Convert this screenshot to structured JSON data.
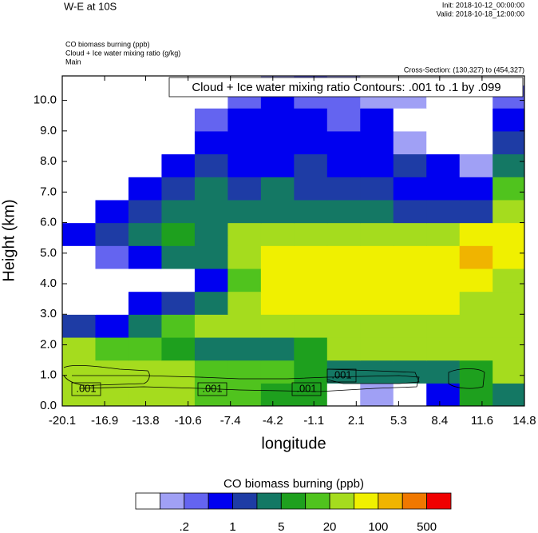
{
  "chart_data": {
    "type": "contour",
    "title": "W-E at 10S",
    "init": "Init: 2018-10-12_00:00:00",
    "valid": "Valid: 2018-10-18_12:00:00",
    "field_lines": [
      "CO biomass burning   (ppb)",
      "Cloud + Ice water mixing ratio   (g/kg)",
      "Main"
    ],
    "cross_section": "Cross-Section: (130,327) to (454,327)",
    "contour_info": "Cloud + Ice water mixing ratio Contours: .001 to .1 by .099",
    "contour_labels": [
      ".001",
      ".001",
      ".001",
      ".001"
    ],
    "xlabel": "longitude",
    "ylabel": "Height (km)",
    "xlim": [
      -20.1,
      14.8
    ],
    "xticks": [
      -20.1,
      -16.9,
      -13.8,
      -10.6,
      -7.4,
      -4.2,
      -1.1,
      2.1,
      5.3,
      8.4,
      11.6,
      14.8
    ],
    "ylim": [
      0,
      10.8
    ],
    "yticks": [
      {
        "value": 0,
        "label": "0.0"
      },
      {
        "value": 1,
        "label": "1.0"
      },
      {
        "value": 2,
        "label": "2.0"
      },
      {
        "value": 3,
        "label": "3.0"
      },
      {
        "value": 4,
        "label": "4.0"
      },
      {
        "value": 5,
        "label": "5.0"
      },
      {
        "value": 6,
        "label": "6.0"
      },
      {
        "value": 7,
        "label": "7.0"
      },
      {
        "value": 8,
        "label": "8.0"
      },
      {
        "value": 9,
        "label": "9.0"
      },
      {
        "value": 10,
        "label": "10.0"
      }
    ],
    "x": [
      -18.85,
      -16.35,
      -13.85,
      -11.35,
      -8.85,
      -6.35,
      -3.85,
      -1.35,
      1.15,
      3.65,
      6.15,
      8.65,
      11.15,
      13.65
    ],
    "y": [
      0.375,
      1.125,
      1.875,
      2.625,
      3.375,
      4.125,
      4.875,
      5.625,
      6.375,
      7.125,
      7.875,
      8.625,
      9.375,
      10.125,
      10.875
    ],
    "z": [
      [
        30,
        30,
        30,
        30,
        12,
        12,
        7,
        7,
        0.05,
        0.1,
        0.05,
        0.6,
        7,
        3
      ],
      [
        30,
        30,
        30,
        30,
        12,
        12,
        12,
        7,
        3,
        3,
        3,
        3,
        7,
        30
      ],
      [
        30,
        12,
        12,
        7,
        3,
        3,
        3,
        7,
        30,
        30,
        30,
        30,
        30,
        30
      ],
      [
        1.5,
        0.6,
        3,
        12,
        30,
        30,
        30,
        30,
        30,
        30,
        30,
        30,
        30,
        30
      ],
      [
        0.05,
        0.05,
        0.6,
        1.5,
        3,
        30,
        60,
        60,
        60,
        60,
        60,
        60,
        30,
        30
      ],
      [
        0.05,
        0.05,
        0.05,
        0.05,
        0.6,
        12,
        60,
        60,
        60,
        60,
        60,
        60,
        60,
        30
      ],
      [
        0.05,
        0.3,
        0.6,
        3,
        3,
        30,
        60,
        60,
        60,
        60,
        60,
        60,
        150,
        60
      ],
      [
        0.6,
        1.5,
        3,
        7,
        3,
        30,
        30,
        30,
        30,
        30,
        30,
        30,
        60,
        60
      ],
      [
        0.05,
        0.6,
        1.5,
        3,
        3,
        3,
        3,
        3,
        3,
        3,
        1.5,
        1.5,
        1.5,
        30
      ],
      [
        0.05,
        0.05,
        0.6,
        1.5,
        3,
        1.5,
        3,
        1.5,
        1.5,
        1.5,
        0.6,
        0.6,
        0.6,
        12
      ],
      [
        0.05,
        0.05,
        0.05,
        0.6,
        1.5,
        0.6,
        0.6,
        1.5,
        0.6,
        0.6,
        1.5,
        0.6,
        0.1,
        3
      ],
      [
        0.05,
        0.05,
        0.05,
        0.05,
        0.6,
        0.6,
        0.6,
        0.6,
        0.6,
        0.6,
        0.1,
        0.05,
        0.05,
        1.5
      ],
      [
        0.05,
        0.05,
        0.05,
        0.05,
        0.3,
        0.6,
        0.6,
        0.6,
        0.3,
        0.6,
        0.05,
        0.05,
        0.05,
        0.6
      ],
      [
        0.05,
        0.05,
        0.05,
        0.05,
        0.05,
        0.3,
        0.6,
        0.3,
        0.3,
        0.1,
        0.1,
        0.05,
        0.05,
        0.3
      ],
      [
        0.05,
        0.05,
        0.05,
        0.05,
        0.05,
        0.05,
        0.1,
        0.3,
        0.1,
        0.05,
        0.05,
        0.05,
        0.05,
        0.05
      ]
    ],
    "colorbar": {
      "title": "CO biomass burning  (ppb)",
      "colors": [
        "#ffffff",
        "#a0a0f5",
        "#6464f0",
        "#0000f0",
        "#1e3ca5",
        "#147864",
        "#1ea01e",
        "#50c31e",
        "#a5dc1e",
        "#f0f000",
        "#f0b400",
        "#f07800",
        "#f00000"
      ],
      "ticks": [
        {
          "value": 0.2,
          "label": ".2"
        },
        1,
        5,
        20,
        100,
        500
      ]
    }
  }
}
